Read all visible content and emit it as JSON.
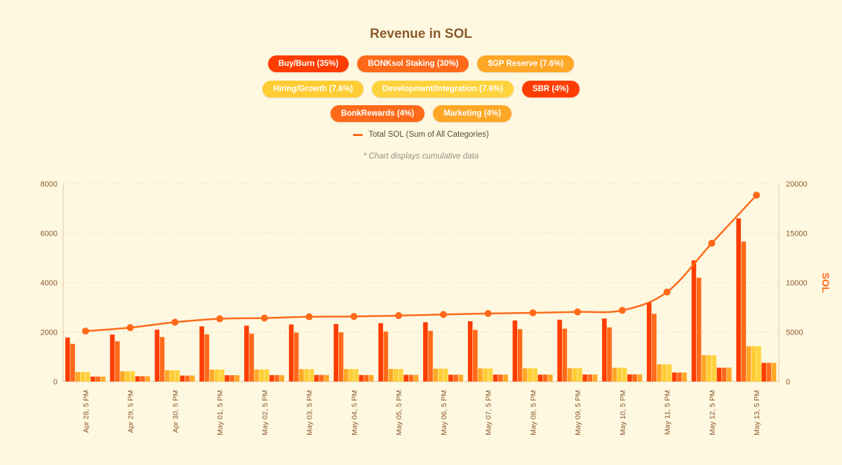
{
  "colors": {
    "buyburn": "#ff3d00",
    "bonksol": "#ff6a1a",
    "sgp": "#ffa726",
    "hiring": "#ffcc33",
    "dev": "#ffd33d",
    "sbr": "#ff3d00",
    "bonkrewards": "#ff6a1a",
    "marketing": "#ffa726",
    "total": "#ff6a1a",
    "axis_text": "#8b5a2b"
  },
  "chart_data": {
    "type": "bar",
    "title": "Revenue in SOL",
    "note": "* Chart displays cumulative data",
    "y2label": "SOL",
    "ylim": [
      0,
      8000
    ],
    "yticks": [
      "0",
      "2000",
      "4000",
      "6000",
      "8000"
    ],
    "y2lim": [
      0,
      20000
    ],
    "y2ticks": [
      "0",
      "5000",
      "10000",
      "15000",
      "20000"
    ],
    "grid": true,
    "categories": [
      "Apr 28, 5 PM",
      "Apr 29, 5 PM",
      "Apr 30, 5 PM",
      "May 01, 5 PM",
      "May 02, 5 PM",
      "May 03, 5 PM",
      "May 04, 5 PM",
      "May 05, 5 PM",
      "May 06, 5 PM",
      "May 07, 5 PM",
      "May 08, 5 PM",
      "May 09, 5 PM",
      "May 10, 5 PM",
      "May 11, 5 PM",
      "May 12, 5 PM",
      "May 13, 5 PM"
    ],
    "series": [
      {
        "name": "Buy/Burn (35%)",
        "color_key": "buyburn",
        "axis": "left",
        "values": [
          1780,
          1900,
          2100,
          2230,
          2260,
          2310,
          2330,
          2360,
          2400,
          2440,
          2470,
          2500,
          2550,
          3200,
          4900,
          6600
        ]
      },
      {
        "name": "BONKsol Staking (30%)",
        "color_key": "bonksol",
        "axis": "left",
        "values": [
          1520,
          1630,
          1800,
          1910,
          1940,
          1980,
          1990,
          2020,
          2050,
          2090,
          2120,
          2140,
          2190,
          2740,
          4200,
          5660
        ]
      },
      {
        "name": "$GP Reserve (7.6%)",
        "color_key": "sgp",
        "axis": "left",
        "values": [
          385,
          415,
          455,
          485,
          490,
          500,
          505,
          510,
          520,
          530,
          535,
          540,
          555,
          695,
          1065,
          1430
        ]
      },
      {
        "name": "Hiring/Growth (7.6%)",
        "color_key": "hiring",
        "axis": "left",
        "values": [
          385,
          415,
          455,
          485,
          490,
          500,
          505,
          510,
          520,
          530,
          535,
          540,
          555,
          695,
          1065,
          1430
        ]
      },
      {
        "name": "Development/Integration (7.6%)",
        "color_key": "dev",
        "axis": "left",
        "values": [
          385,
          415,
          455,
          485,
          490,
          500,
          505,
          510,
          520,
          530,
          535,
          540,
          555,
          695,
          1065,
          1430
        ]
      },
      {
        "name": "SBR (4%)",
        "color_key": "sbr",
        "axis": "left",
        "values": [
          200,
          215,
          240,
          255,
          260,
          265,
          265,
          270,
          275,
          280,
          280,
          285,
          290,
          365,
          560,
          755
        ]
      },
      {
        "name": "BonkRewards (4%)",
        "color_key": "bonkrewards",
        "axis": "left",
        "values": [
          200,
          215,
          240,
          255,
          260,
          265,
          265,
          270,
          275,
          280,
          280,
          285,
          290,
          365,
          560,
          755
        ]
      },
      {
        "name": "Marketing (4%)",
        "color_key": "marketing",
        "axis": "left",
        "values": [
          200,
          215,
          240,
          255,
          260,
          265,
          265,
          270,
          275,
          280,
          280,
          285,
          290,
          365,
          560,
          755
        ]
      }
    ],
    "line": {
      "name": "Total SOL (Sum of All Categories)",
      "color_key": "total",
      "axis": "right",
      "values": [
        5100,
        5450,
        6000,
        6350,
        6420,
        6550,
        6580,
        6670,
        6780,
        6880,
        6950,
        7040,
        7200,
        9050,
        13980,
        18850
      ]
    }
  }
}
